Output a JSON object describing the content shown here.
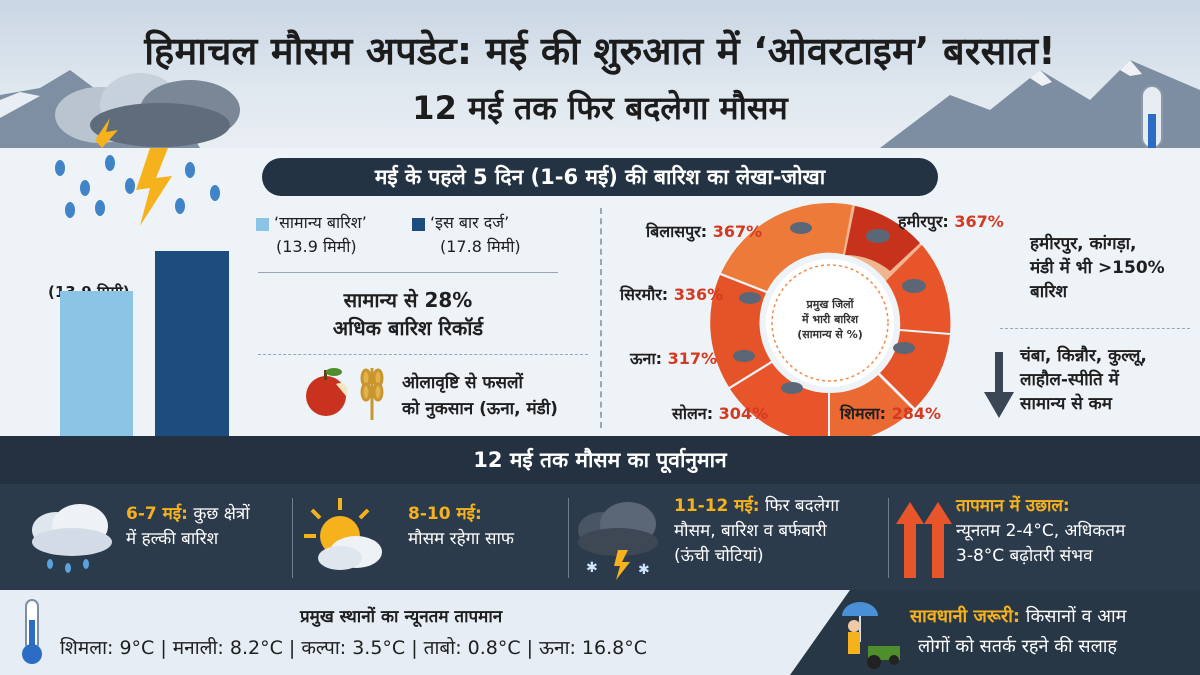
{
  "header": {
    "title": "हिमाचल मौसम अपडेट: मई की शुरुआत में ‘ओवरटाइम’ बरसात!",
    "subtitle": "12 मई तक फिर बदलेगा मौसम"
  },
  "rain_section": {
    "banner": "मई के पहले 5 दिन (1-6 मई) की बारिश का लेखा-जोखा",
    "bar_label": "(13.9 मिमी)",
    "legend": {
      "normal": "‘सामान्य बारिश’",
      "normal_value": "(13.9 मिमी)",
      "actual": "‘इस बार दर्ज’",
      "actual_value": "(17.8 मिमी)"
    },
    "excess_line1": "सामान्य से 28%",
    "excess_line2": "अधिक बारिश रिकॉर्ड",
    "hail_line1": "ओलावृष्टि से फसलों",
    "hail_line2": "को नुकसान (ऊना, मंडी)",
    "donut_center": [
      "प्रमुख जिलों",
      "में भारी बारिश",
      "(सामान्य से %)"
    ],
    "districts": {
      "bilaspur": {
        "name": "बिलासपुर:",
        "pct": "367%"
      },
      "hamirpur": {
        "name": "हमीरपुर:",
        "pct": "367%"
      },
      "sirmaur": {
        "name": "सिरमौर:",
        "pct": "336%"
      },
      "una": {
        "name": "ऊना:",
        "pct": "317%"
      },
      "solan": {
        "name": "सोलन:",
        "pct": "304%"
      },
      "shimla": {
        "name": "शिमला:",
        "pct": "284%"
      }
    },
    "note_high": [
      "हमीरपुर, कांगड़ा,",
      "मंडी में भी >150%",
      "बारिश"
    ],
    "note_low": [
      "चंबा, किन्नौर, कुल्लू,",
      "लाहौल-स्पीति में",
      "सामान्य से कम"
    ]
  },
  "chart_data": {
    "type": "bar",
    "categories": [
      "‘सामान्य बारिश’",
      "‘इस बार दर्ज’"
    ],
    "values": [
      13.9,
      17.8
    ],
    "ylim": [
      0,
      19.2
    ],
    "colors": [
      "#8cc4e6",
      "#1d4c7e"
    ]
  },
  "forecast": {
    "banner": "12 मई तक मौसम का पूर्वानुमान",
    "items": [
      {
        "date": "6-7 मई:",
        "text1": "कुछ क्षेत्रों",
        "text2": "में हल्की बारिश"
      },
      {
        "date": "8-10 मई:",
        "text1": "",
        "text2": "मौसम रहेगा साफ"
      },
      {
        "date": "11-12 मई:",
        "text1": "फिर बदलेगा",
        "text2": "मौसम, बारिश व बर्फबारी",
        "text3": "(ऊंची चोटियां)"
      },
      {
        "date": "तापमान में उछाल:",
        "text2": "न्यूनतम 2-4°C, अधिकतम",
        "text3": "3-8°C बढ़ोतरी संभव"
      }
    ]
  },
  "min_temp": {
    "title": "प्रमुख स्थानों का न्यूनतम तापमान",
    "values": "शिमला: 9°C | मनाली: 8.2°C | कल्पा: 3.5°C | ताबो: 0.8°C | ऊना: 16.8°C"
  },
  "caution": {
    "label": "सावधानी जरूरी:",
    "text1": "किसानों व आम",
    "text2": "लोगों को सतर्क रहने की सलाह"
  },
  "colors": {
    "accent_orange": "#e8552a",
    "highlight_yellow": "#f6b21c",
    "dark_banner": "#243343",
    "bar_light": "#8cc4e6",
    "bar_dark": "#1d4c7e",
    "pct_red": "#d43a22"
  },
  "icons": [
    "storm-cloud-icon",
    "thermometer-icon",
    "apple-icon",
    "wheat-icon",
    "rain-cloud-icon",
    "sun-cloud-icon",
    "snow-storm-icon",
    "up-arrow-icon",
    "down-arrow-icon",
    "umbrella-farmer-icon",
    "tractor-icon"
  ]
}
